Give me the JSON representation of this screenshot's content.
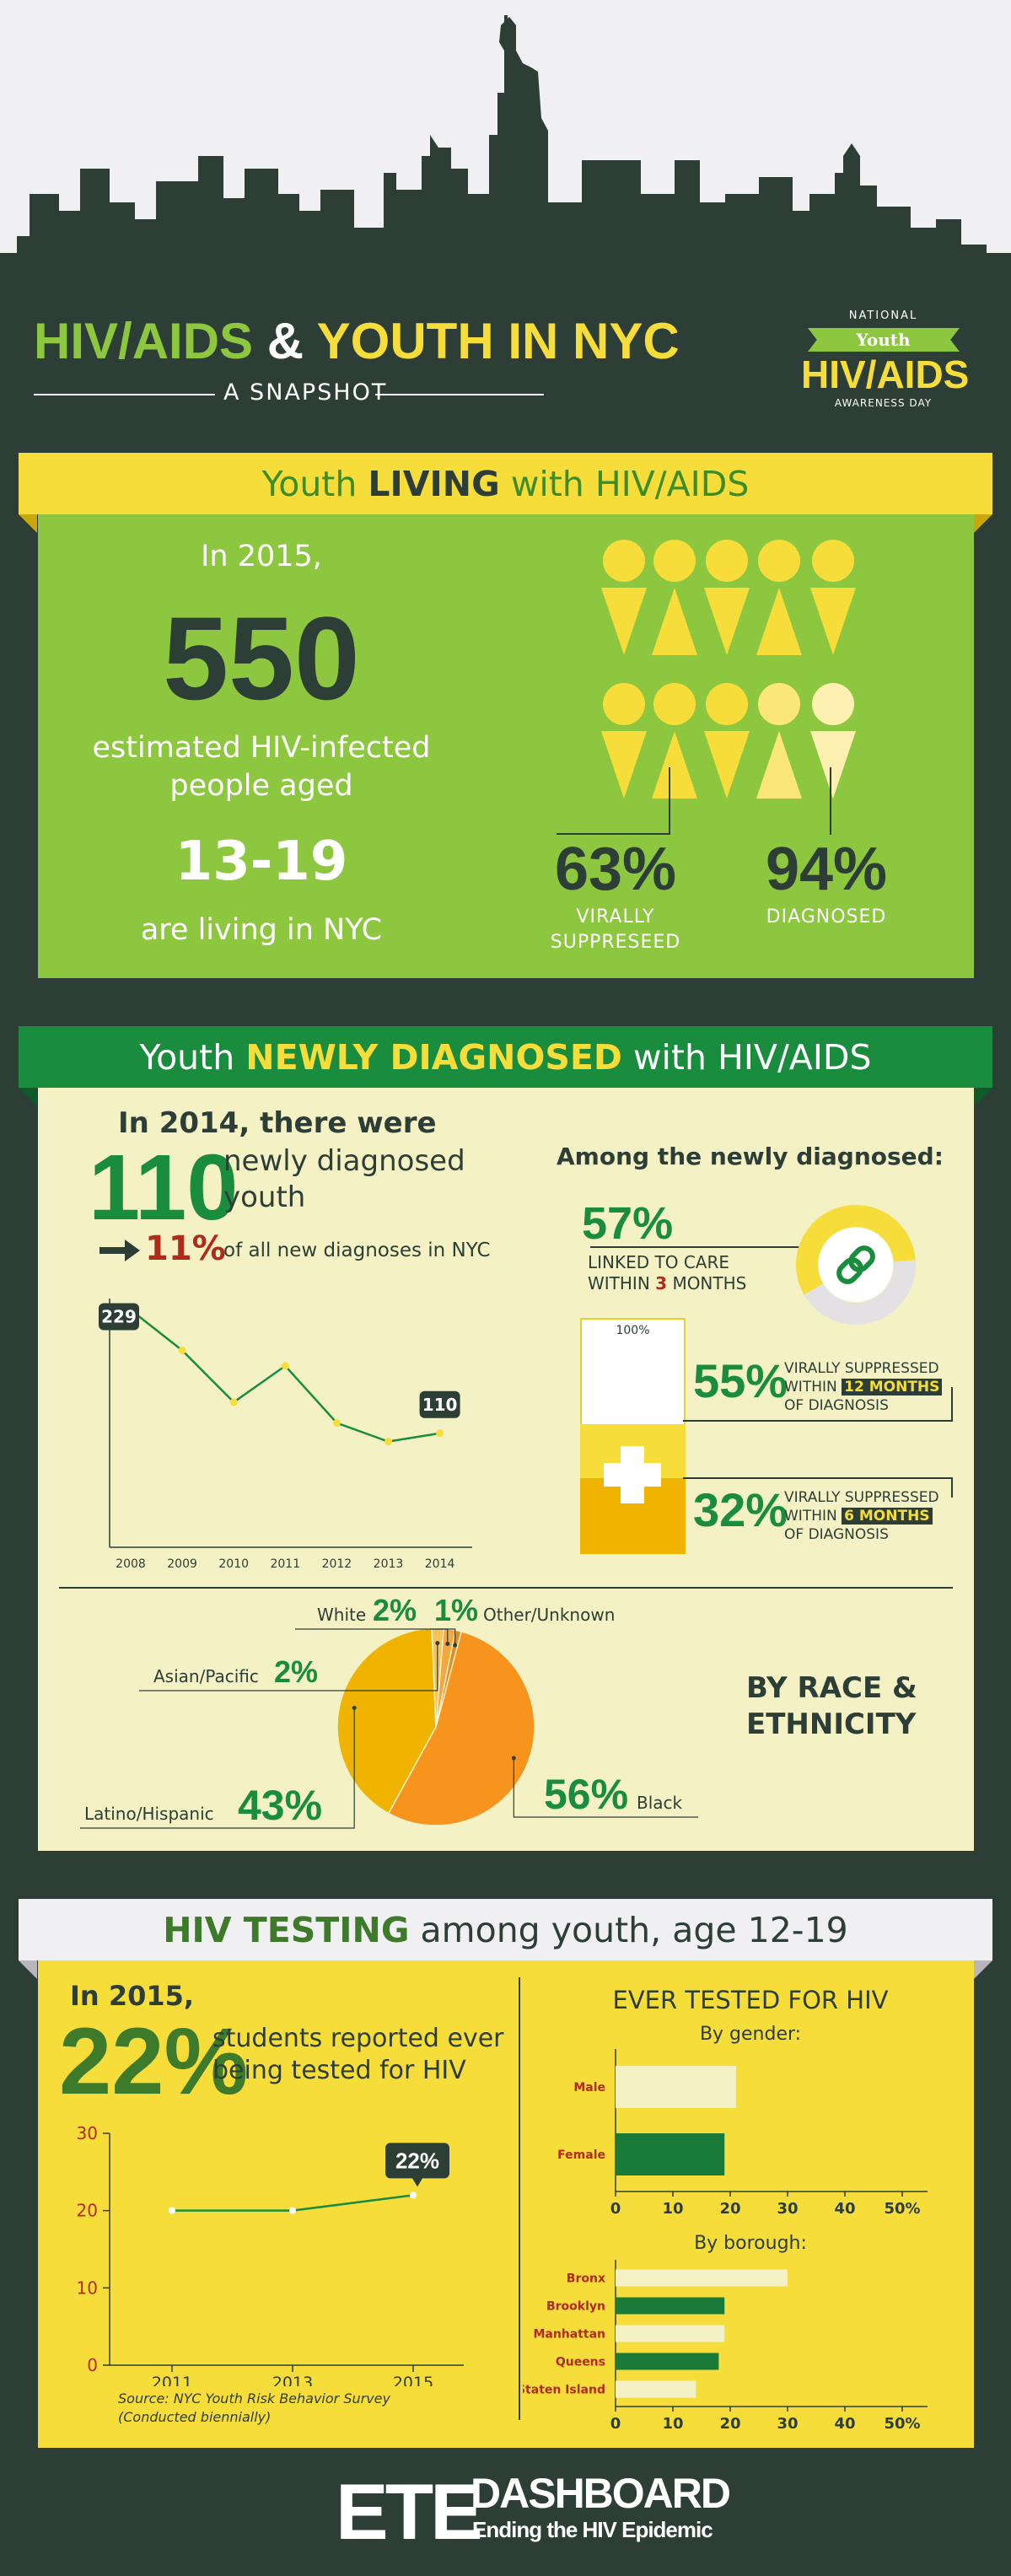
{
  "header": {
    "title_hiv": "HIV/AIDS",
    "title_amp": "&",
    "title_youth": "YOUTH IN NYC",
    "subtitle": "A SNAPSHOT",
    "badge_national": "NATIONAL",
    "badge_youth": "Youth",
    "badge_hivaids": "HIV/AIDS",
    "badge_awareness": "AWARENESS DAY"
  },
  "living": {
    "ribbon_pre": "Youth",
    "ribbon_key": "LIVING",
    "ribbon_post": "with HIV/AIDS",
    "in_year": "In 2015,",
    "count": "550",
    "desc1": "estimated HIV-infected",
    "desc2": "people aged",
    "age_range": "13-19",
    "desc3": "are living in NYC",
    "virally_pct": "63%",
    "virally_label1": "VIRALLY",
    "virally_label2": "SUPPRESEED",
    "diagnosed_pct": "94%",
    "diagnosed_label": "DIAGNOSED",
    "virally_fraction": 0.63,
    "diagnosed_fraction": 0.94
  },
  "newly": {
    "ribbon_pre": "Youth",
    "ribbon_key": "NEWLY DIAGNOSED",
    "ribbon_post": "with HIV/AIDS",
    "intro": "In 2014, there were",
    "count": "110",
    "count_label1": "newly diagnosed",
    "count_label2": "youth",
    "share_pct": "11%",
    "share_label": "of all new diagnoses in NYC",
    "among_title": "Among the newly diagnosed:",
    "linked_pct": "57%",
    "linked_label1": "LINKED TO CARE",
    "linked_label2a": "WITHIN",
    "linked_label2b": "3",
    "linked_label2c": "MONTHS",
    "bar_top": "100%",
    "supp12_pct": "55%",
    "supp12_l1": "VIRALLY SUPPRESSED",
    "supp12_l2a": "WITHIN",
    "supp12_l2b": "12 MONTHS",
    "supp12_l3": "OF DIAGNOSIS",
    "supp6_pct": "32%",
    "supp6_l1": "VIRALLY SUPPRESSED",
    "supp6_l2a": "WITHIN",
    "supp6_l2b": "6 MONTHS",
    "supp6_l3": "OF DIAGNOSIS",
    "race_title1": "BY RACE &",
    "race_title2": "ETHNICITY"
  },
  "testing": {
    "ribbon_key": "HIV TESTING",
    "ribbon_post": "among youth, age 12-19",
    "in_year": "In 2015,",
    "pct": "22%",
    "pct_label1": "students reported ever",
    "pct_label2": "being tested for HIV",
    "source1": "Source: NYC Youth Risk Behavior Survey",
    "source2": "(Conducted biennially)",
    "ever_title": "EVER TESTED FOR HIV",
    "by_gender": "By gender:",
    "by_borough": "By borough:"
  },
  "footer": {
    "ete": "ETE",
    "dashboard": "DASHBOARD",
    "tagline": "Ending the HIV Epidemic"
  },
  "colors": {
    "dark": "#2d3e36",
    "lime": "#8dc63f",
    "yellow": "#f7dd3a",
    "green": "#1a8c3e",
    "cream": "#f4f2c4",
    "orange": "#f7941e",
    "gold": "#f0b400"
  },
  "chart_data": [
    {
      "type": "line",
      "x": [
        "2008",
        "2009",
        "2010",
        "2011",
        "2012",
        "2013",
        "2014"
      ],
      "values": [
        229,
        190,
        140,
        175,
        120,
        102,
        110
      ],
      "point_labels": {
        "2008": "229",
        "2014": "110"
      },
      "xlabel": "",
      "ylabel": ""
    },
    {
      "type": "pie",
      "categories": [
        "Black",
        "Latino/Hispanic",
        "Asian/Pacific",
        "White",
        "Other/Unknown"
      ],
      "values": [
        56,
        43,
        2,
        2,
        1
      ],
      "labels": [
        "56%",
        "43%",
        "2%",
        "2%",
        "1%"
      ]
    },
    {
      "type": "line",
      "x": [
        "2011",
        "2013",
        "2015"
      ],
      "values": [
        20,
        20,
        22
      ],
      "ylim": [
        0,
        30
      ],
      "yticks": [
        "0",
        "10",
        "20",
        "30"
      ],
      "point_labels": {
        "2015": "22%"
      }
    },
    {
      "type": "bar",
      "title": "By gender:",
      "categories": [
        "Male",
        "Female"
      ],
      "values": [
        21,
        19
      ],
      "xlim": [
        0,
        50
      ],
      "xticks": [
        "0",
        "10",
        "20",
        "30",
        "40",
        "50%"
      ]
    },
    {
      "type": "bar",
      "title": "By borough:",
      "categories": [
        "Bronx",
        "Brooklyn",
        "Manhattan",
        "Queens",
        "Staten Island"
      ],
      "values": [
        30,
        19,
        19,
        18,
        14
      ],
      "xlim": [
        0,
        50
      ],
      "xticks": [
        "0",
        "10",
        "20",
        "30",
        "40",
        "50%"
      ]
    }
  ]
}
